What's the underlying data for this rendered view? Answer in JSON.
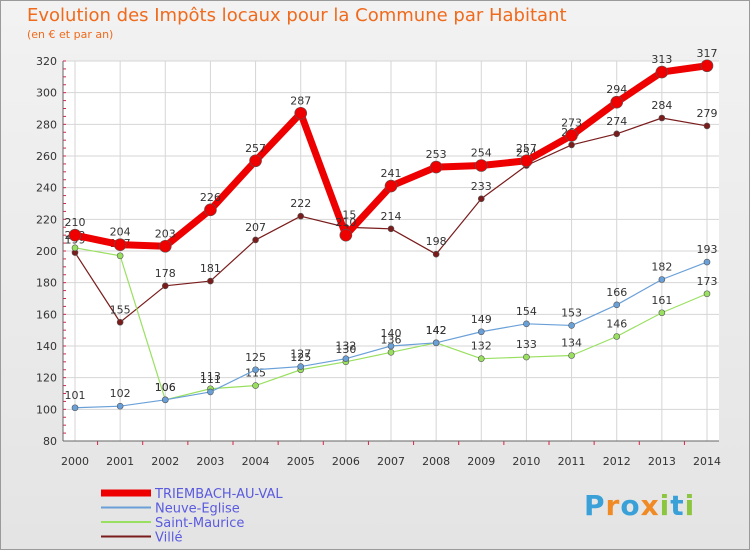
{
  "header": {
    "title": "Evolution des Impôts locaux pour la Commune par Habitant",
    "subtitle": "(en € et par an)"
  },
  "logo": {
    "text": "Proxiti",
    "colors": [
      "#3aa0d8",
      "#f08a24",
      "#3aa0d8",
      "#f08a24",
      "#8cc63f",
      "#3aa0d8",
      "#8cc63f"
    ]
  },
  "chart_data": {
    "type": "line",
    "title": "Evolution des Impôts locaux pour la Commune par Habitant",
    "subtitle": "(en € et par an)",
    "xlabel": "",
    "ylabel": "",
    "ylim": [
      80,
      320
    ],
    "yticks": [
      80,
      100,
      120,
      140,
      160,
      180,
      200,
      220,
      240,
      260,
      280,
      300,
      320
    ],
    "grid": true,
    "legend_position": "bottom-left",
    "x": [
      "2000",
      "2001",
      "2002",
      "2003",
      "2004",
      "2005",
      "2006",
      "2007",
      "2008",
      "2009",
      "2010",
      "2011",
      "2012",
      "2013",
      "2014"
    ],
    "series": [
      {
        "name": "Villé",
        "color": "#7a1c1c",
        "width": 1.2,
        "marker": 3,
        "values": [
          199,
          155,
          178,
          181,
          207,
          222,
          215,
          214,
          198,
          233,
          254,
          267,
          274,
          284,
          279
        ]
      },
      {
        "name": "Saint-Maurice",
        "color": "#99e060",
        "width": 1.2,
        "marker": 3,
        "values": [
          202,
          197,
          106,
          113,
          115,
          125,
          130,
          136,
          142,
          132,
          133,
          134,
          146,
          161,
          173
        ]
      },
      {
        "name": "Neuve-Eglise",
        "color": "#6aa0d8",
        "width": 1.2,
        "marker": 3,
        "values": [
          101,
          102,
          106,
          111,
          125,
          127,
          132,
          140,
          142,
          149,
          154,
          153,
          166,
          182,
          193
        ]
      },
      {
        "name": "TRIEMBACH-AU-VAL",
        "color": "#ee0000",
        "width": 7,
        "marker": 6,
        "values": [
          210,
          204,
          203,
          226,
          257,
          287,
          210,
          241,
          253,
          254,
          257,
          273,
          294,
          313,
          317
        ]
      }
    ],
    "legend_order": [
      "TRIEMBACH-AU-VAL",
      "Neuve-Eglise",
      "Saint-Maurice",
      "Villé"
    ]
  }
}
